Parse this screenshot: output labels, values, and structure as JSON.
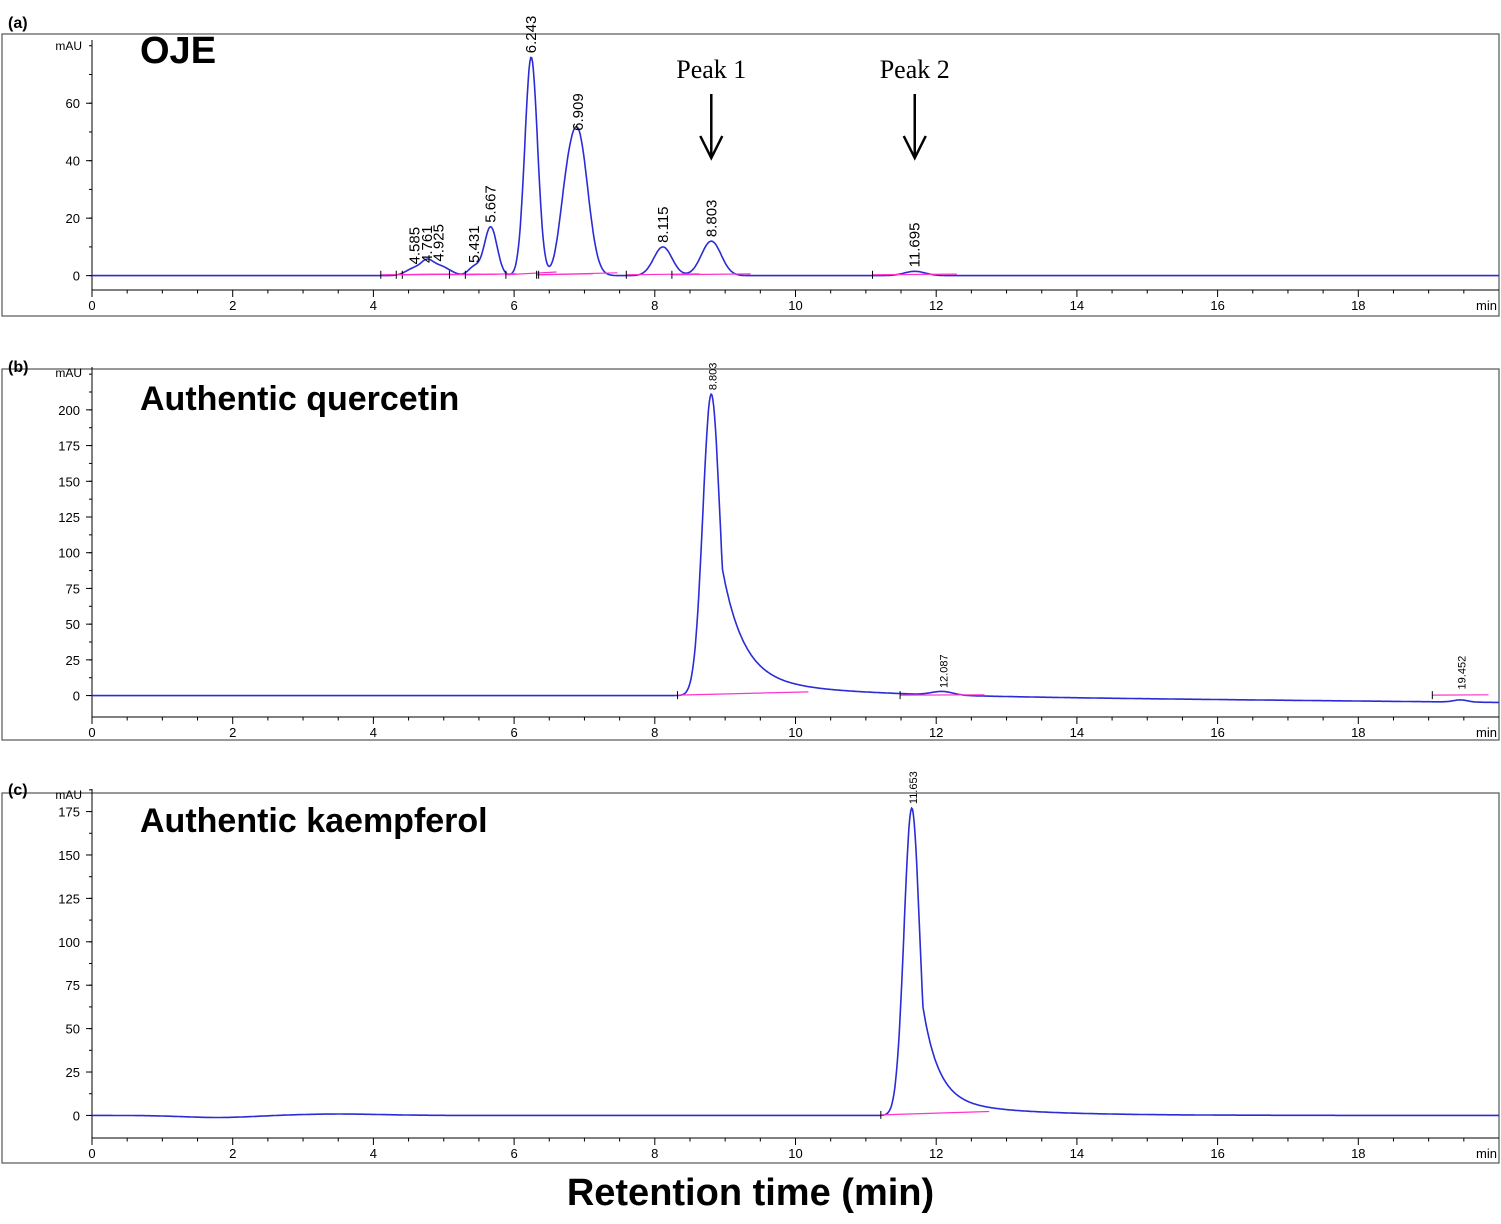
{
  "figure": {
    "xlabel": "Retention time (min)"
  },
  "chart_data": [
    {
      "type": "line",
      "panel_label": "(a)",
      "title": "OJE",
      "ylabel": "mAU",
      "xunit": "min",
      "xlim": [
        0,
        20
      ],
      "ylim": [
        -5,
        82
      ],
      "xticks": [
        0,
        2,
        4,
        6,
        8,
        10,
        12,
        14,
        16,
        18
      ],
      "yticks": [
        0,
        20,
        40,
        60
      ],
      "peaks": [
        {
          "t": 4.585,
          "h": 2.5,
          "w": 0.12,
          "label": "4.585"
        },
        {
          "t": 4.761,
          "h": 3.0,
          "w": 0.08,
          "label": "4.761"
        },
        {
          "t": 4.925,
          "h": 3.5,
          "w": 0.15,
          "label": "4.925"
        },
        {
          "t": 5.431,
          "h": 3.0,
          "w": 0.08,
          "label": "5.431"
        },
        {
          "t": 5.667,
          "h": 17,
          "w": 0.09,
          "label": "5.667"
        },
        {
          "t": 6.243,
          "h": 76,
          "w": 0.09,
          "label": "6.243"
        },
        {
          "t": 6.72,
          "h": 14,
          "w": 0.1,
          "label": ""
        },
        {
          "t": 6.909,
          "h": 49,
          "w": 0.14,
          "label": "6.909"
        },
        {
          "t": 8.115,
          "h": 10,
          "w": 0.13,
          "label": "8.115"
        },
        {
          "t": 8.803,
          "h": 12,
          "w": 0.14,
          "label": "8.803"
        },
        {
          "t": 11.695,
          "h": 1.5,
          "w": 0.15,
          "label": "11.695"
        }
      ],
      "annotations": [
        {
          "text": "Peak 1",
          "t": 8.803
        },
        {
          "text": "Peak 2",
          "t": 11.695
        }
      ]
    },
    {
      "type": "line",
      "panel_label": "(b)",
      "title": "Authentic quercetin",
      "ylabel": "mAU",
      "xunit": "min",
      "xlim": [
        0,
        20
      ],
      "ylim": [
        -15,
        230
      ],
      "xticks": [
        0,
        2,
        4,
        6,
        8,
        10,
        12,
        14,
        16,
        18
      ],
      "yticks": [
        0,
        25,
        50,
        75,
        100,
        125,
        150,
        175,
        200
      ],
      "peaks": [
        {
          "t": 8.803,
          "h": 211,
          "w": 0.12,
          "tail": 0.3,
          "label": "8.803"
        },
        {
          "t": 12.087,
          "h": 2.5,
          "w": 0.15,
          "label": "12.087"
        },
        {
          "t": 19.452,
          "h": 1.5,
          "w": 0.1,
          "label": "19.452"
        }
      ],
      "annotations": []
    },
    {
      "type": "line",
      "panel_label": "(c)",
      "title": "Authentic kaempferol",
      "ylabel": "mAU",
      "xunit": "min",
      "xlim": [
        0,
        20
      ],
      "ylim": [
        -13,
        188
      ],
      "xticks": [
        0,
        2,
        4,
        6,
        8,
        10,
        12,
        14,
        16,
        18
      ],
      "yticks": [
        0,
        25,
        50,
        75,
        100,
        125,
        150,
        175
      ],
      "peaks": [
        {
          "t": 11.653,
          "h": 177,
          "w": 0.11,
          "tail": 0.22,
          "label": "11.653"
        }
      ],
      "annotations": []
    }
  ]
}
